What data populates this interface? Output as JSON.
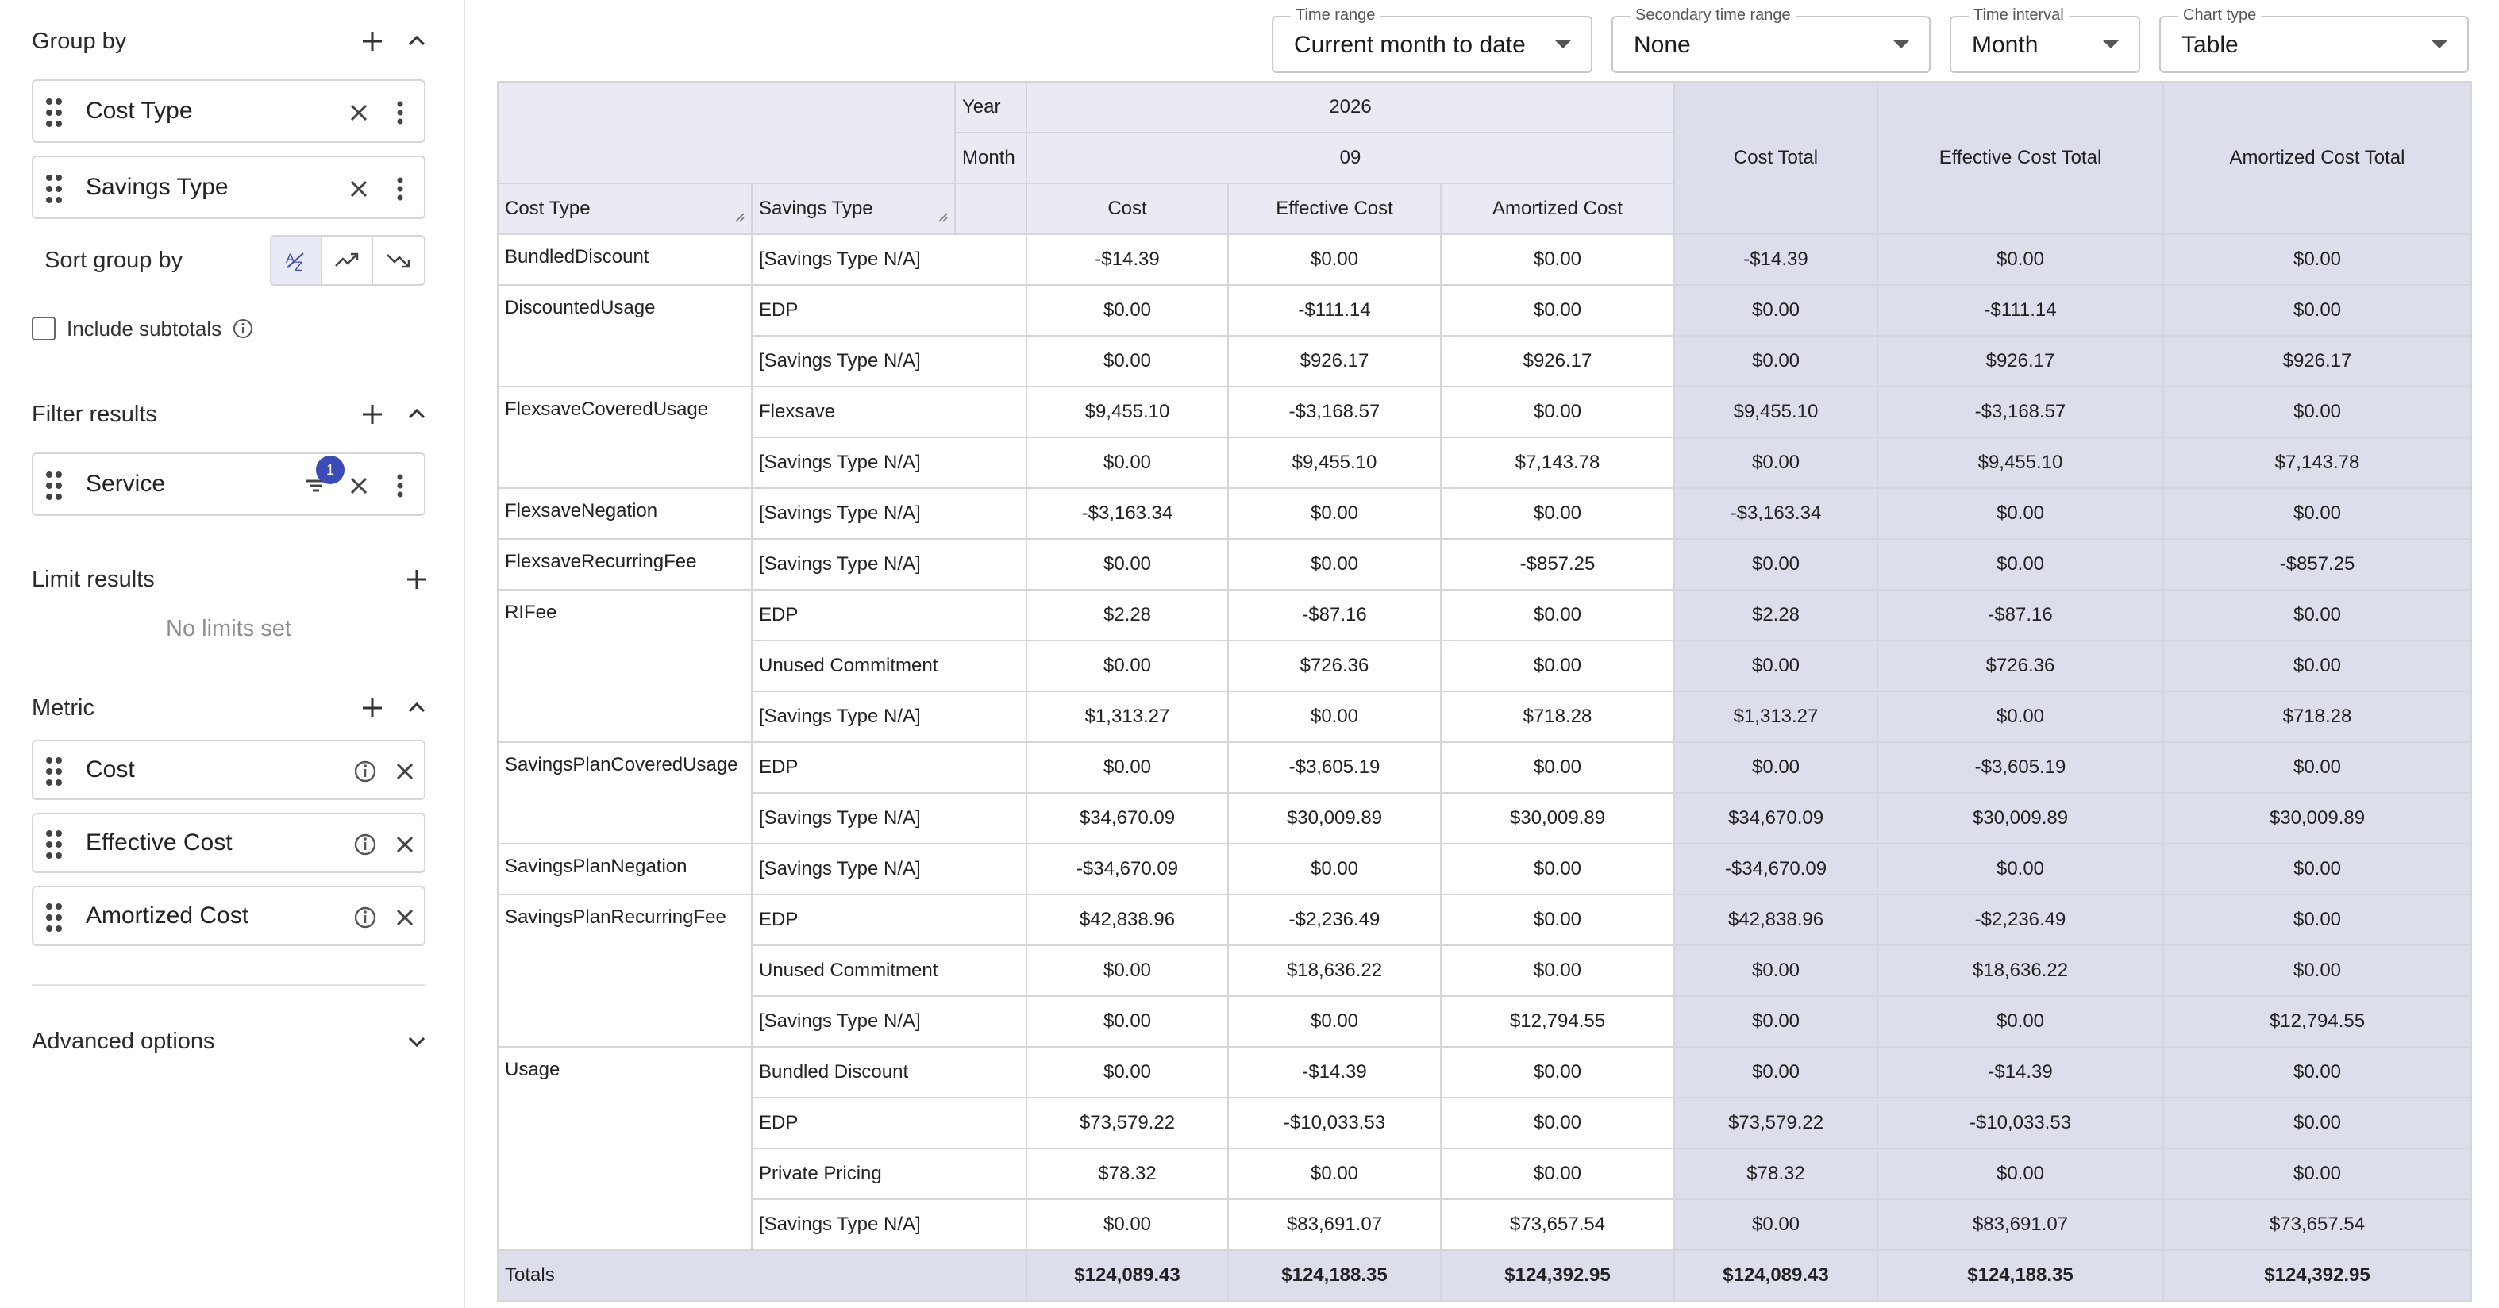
{
  "sidebar": {
    "group_by": {
      "title": "Group by",
      "items": [
        "Cost Type",
        "Savings Type"
      ],
      "sort_label": "Sort group by",
      "subtotals_label": "Include subtotals"
    },
    "filter": {
      "title": "Filter results",
      "items": [
        "Service"
      ],
      "badge": "1"
    },
    "limit": {
      "title": "Limit results",
      "empty": "No limits set"
    },
    "metric": {
      "title": "Metric",
      "items": [
        "Cost",
        "Effective Cost",
        "Amortized Cost"
      ]
    },
    "advanced": "Advanced options"
  },
  "topbar": {
    "time_range": {
      "label": "Time range",
      "value": "Current month to date"
    },
    "secondary": {
      "label": "Secondary time range",
      "value": "None"
    },
    "interval": {
      "label": "Time interval",
      "value": "Month"
    },
    "chart_type": {
      "label": "Chart type",
      "value": "Table"
    }
  },
  "table": {
    "year_label": "Year",
    "year": "2026",
    "month_label": "Month",
    "month": "09",
    "col_cost_type": "Cost Type",
    "col_savings_type": "Savings Type",
    "metrics": [
      "Cost",
      "Effective Cost",
      "Amortized Cost"
    ],
    "totals_headers": [
      "Cost Total",
      "Effective Cost Total",
      "Amortized Cost Total"
    ],
    "groups": [
      {
        "name": "BundledDiscount",
        "rows": [
          {
            "s": "[Savings Type N/A]",
            "v": [
              "-$14.39",
              "$0.00",
              "$0.00"
            ],
            "t": [
              "-$14.39",
              "$0.00",
              "$0.00"
            ]
          }
        ]
      },
      {
        "name": "DiscountedUsage",
        "rows": [
          {
            "s": "EDP",
            "v": [
              "$0.00",
              "-$111.14",
              "$0.00"
            ],
            "t": [
              "$0.00",
              "-$111.14",
              "$0.00"
            ]
          },
          {
            "s": "[Savings Type N/A]",
            "v": [
              "$0.00",
              "$926.17",
              "$926.17"
            ],
            "t": [
              "$0.00",
              "$926.17",
              "$926.17"
            ]
          }
        ]
      },
      {
        "name": "FlexsaveCoveredUsage",
        "rows": [
          {
            "s": "Flexsave",
            "v": [
              "$9,455.10",
              "-$3,168.57",
              "$0.00"
            ],
            "t": [
              "$9,455.10",
              "-$3,168.57",
              "$0.00"
            ]
          },
          {
            "s": "[Savings Type N/A]",
            "v": [
              "$0.00",
              "$9,455.10",
              "$7,143.78"
            ],
            "t": [
              "$0.00",
              "$9,455.10",
              "$7,143.78"
            ]
          }
        ]
      },
      {
        "name": "FlexsaveNegation",
        "rows": [
          {
            "s": "[Savings Type N/A]",
            "v": [
              "-$3,163.34",
              "$0.00",
              "$0.00"
            ],
            "t": [
              "-$3,163.34",
              "$0.00",
              "$0.00"
            ]
          }
        ]
      },
      {
        "name": "FlexsaveRecurringFee",
        "rows": [
          {
            "s": "[Savings Type N/A]",
            "v": [
              "$0.00",
              "$0.00",
              "-$857.25"
            ],
            "t": [
              "$0.00",
              "$0.00",
              "-$857.25"
            ]
          }
        ]
      },
      {
        "name": "RIFee",
        "rows": [
          {
            "s": "EDP",
            "v": [
              "$2.28",
              "-$87.16",
              "$0.00"
            ],
            "t": [
              "$2.28",
              "-$87.16",
              "$0.00"
            ]
          },
          {
            "s": "Unused Commitment",
            "v": [
              "$0.00",
              "$726.36",
              "$0.00"
            ],
            "t": [
              "$0.00",
              "$726.36",
              "$0.00"
            ]
          },
          {
            "s": "[Savings Type N/A]",
            "v": [
              "$1,313.27",
              "$0.00",
              "$718.28"
            ],
            "t": [
              "$1,313.27",
              "$0.00",
              "$718.28"
            ]
          }
        ]
      },
      {
        "name": "SavingsPlanCoveredUsage",
        "rows": [
          {
            "s": "EDP",
            "v": [
              "$0.00",
              "-$3,605.19",
              "$0.00"
            ],
            "t": [
              "$0.00",
              "-$3,605.19",
              "$0.00"
            ]
          },
          {
            "s": "[Savings Type N/A]",
            "v": [
              "$34,670.09",
              "$30,009.89",
              "$30,009.89"
            ],
            "t": [
              "$34,670.09",
              "$30,009.89",
              "$30,009.89"
            ]
          }
        ]
      },
      {
        "name": "SavingsPlanNegation",
        "rows": [
          {
            "s": "[Savings Type N/A]",
            "v": [
              "-$34,670.09",
              "$0.00",
              "$0.00"
            ],
            "t": [
              "-$34,670.09",
              "$0.00",
              "$0.00"
            ]
          }
        ]
      },
      {
        "name": "SavingsPlanRecurringFee",
        "rows": [
          {
            "s": "EDP",
            "v": [
              "$42,838.96",
              "-$2,236.49",
              "$0.00"
            ],
            "t": [
              "$42,838.96",
              "-$2,236.49",
              "$0.00"
            ]
          },
          {
            "s": "Unused Commitment",
            "v": [
              "$0.00",
              "$18,636.22",
              "$0.00"
            ],
            "t": [
              "$0.00",
              "$18,636.22",
              "$0.00"
            ]
          },
          {
            "s": "[Savings Type N/A]",
            "v": [
              "$0.00",
              "$0.00",
              "$12,794.55"
            ],
            "t": [
              "$0.00",
              "$0.00",
              "$12,794.55"
            ]
          }
        ]
      },
      {
        "name": "Usage",
        "rows": [
          {
            "s": "Bundled Discount",
            "v": [
              "$0.00",
              "-$14.39",
              "$0.00"
            ],
            "t": [
              "$0.00",
              "-$14.39",
              "$0.00"
            ]
          },
          {
            "s": "EDP",
            "v": [
              "$73,579.22",
              "-$10,033.53",
              "$0.00"
            ],
            "t": [
              "$73,579.22",
              "-$10,033.53",
              "$0.00"
            ]
          },
          {
            "s": "Private Pricing",
            "v": [
              "$78.32",
              "$0.00",
              "$0.00"
            ],
            "t": [
              "$78.32",
              "$0.00",
              "$0.00"
            ]
          },
          {
            "s": "[Savings Type N/A]",
            "v": [
              "$0.00",
              "$83,691.07",
              "$73,657.54"
            ],
            "t": [
              "$0.00",
              "$83,691.07",
              "$73,657.54"
            ]
          }
        ]
      }
    ],
    "totals_label": "Totals",
    "totals": [
      "$124,089.43",
      "$124,188.35",
      "$124,392.95"
    ],
    "grand_totals": [
      "$124,089.43",
      "$124,188.35",
      "$124,392.95"
    ]
  },
  "colors": {
    "accent": "#3b4bb8",
    "header_bg": "#e9eaf4",
    "totals_bg": "#dcdeec",
    "border": "#d5d6dc"
  }
}
